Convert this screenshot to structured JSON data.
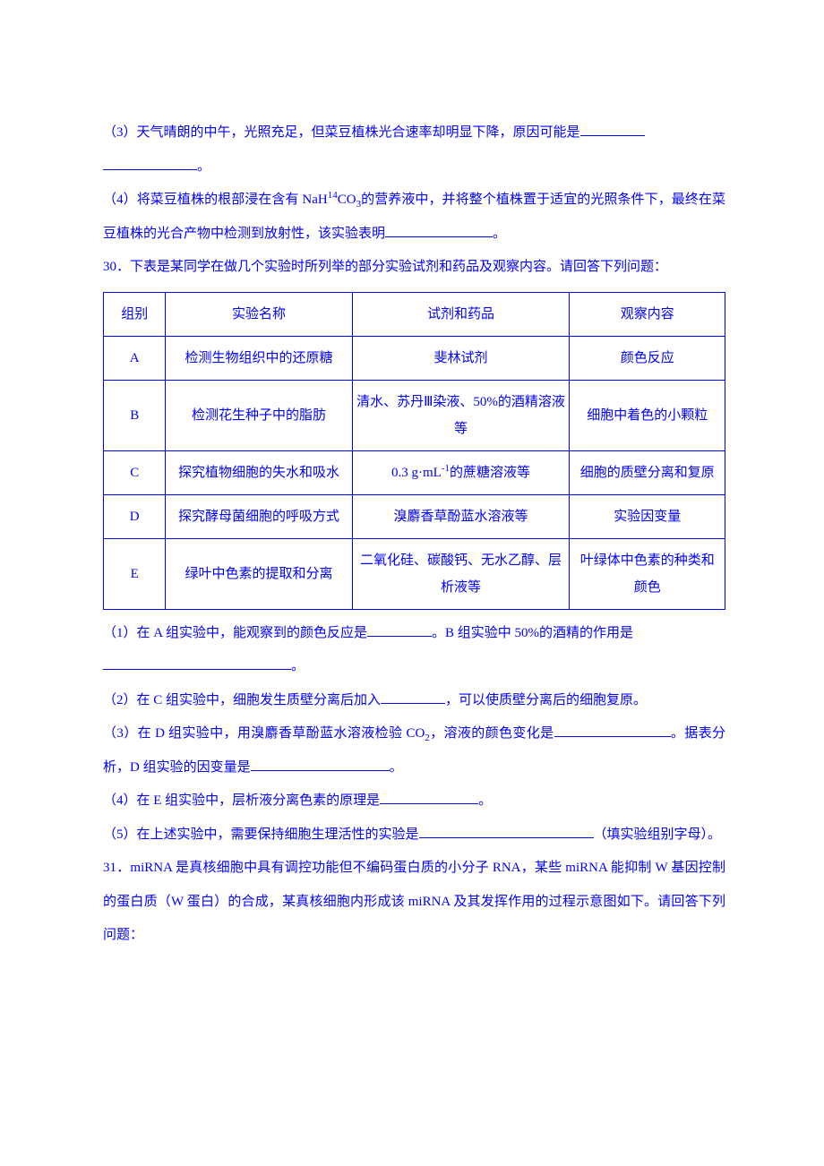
{
  "q3": {
    "prefix": "（3）天气晴朗的中午，光照充足，但菜豆植株光合速率却明显下降，原因可能是",
    "blank1_w": 72,
    "blank2_w": 105,
    "tail": "。"
  },
  "q4": {
    "prefix": "（4）将菜豆植株的根部浸在含有 NaH",
    "sup1": "14",
    "mid1": "CO",
    "sub1": "3",
    "mid2": "的营养液中，并将整个植株置于适宜的光照条件下，最终在菜豆植株的光合产物中检测到放射性，该实验表明",
    "blank_w": 120,
    "tail": "。"
  },
  "q30_intro": "30．下表是某同学在做几个实验时所列举的部分实验试剂和药品及观察内容。请回答下列问题：",
  "table": {
    "header": [
      "组别",
      "实验名称",
      "试剂和药品",
      "观察内容"
    ],
    "rows": [
      {
        "a": "A",
        "b": "检测生物组织中的还原糖",
        "c": "斐林试剂",
        "d": "颜色反应"
      },
      {
        "a": "B",
        "b": "检测花生种子中的脂肪",
        "c": "清水、苏丹Ⅲ染液、50%的酒精溶液等",
        "d": "细胞中着色的小颗粒"
      },
      {
        "a": "C",
        "b": "探究植物细胞的失水和吸水",
        "c_pre": "0.3 g·mL",
        "c_sup": "-1",
        "c_post": "的蔗糖溶液等",
        "d": "细胞的质壁分离和复原"
      },
      {
        "a": "D",
        "b": "探究酵母菌细胞的呼吸方式",
        "c": "溴麝香草酚蓝水溶液等",
        "d": "实验因变量"
      },
      {
        "a": "E",
        "b": "绿叶中色素的提取和分离",
        "c": "二氧化硅、碳酸钙、无水乙醇、层析液等",
        "d": "叶绿体中色素的种类和颜色"
      }
    ]
  },
  "sub1": {
    "t1": "（1）在 A 组实验中，能观察到的颜色反应是",
    "b1_w": 72,
    "t2": "。B 组实验中 50%的酒精的作用是",
    "b2_w": 210,
    "tail": "。"
  },
  "sub2": {
    "t1": "（2）在 C 组实验中，细胞发生质壁分离后加入",
    "b1_w": 72,
    "t2": "，可以使质壁分离后的细胞复原。"
  },
  "sub3": {
    "t1": "（3）在 D 组实验中，用溴麝香草酚蓝水溶液检验 CO",
    "sub": "2",
    "t2": "，溶液的颜色变化是",
    "b1_w": 130,
    "t3": "。据表分析，D 组实验的因变量是",
    "b2_w": 155,
    "tail": "。"
  },
  "sub4": {
    "t1": "（4）在 E 组实验中，层析液分离色素的原理是",
    "b1_w": 110,
    "tail": "。"
  },
  "sub5": {
    "t1": "（5）在上述实验中，需要保持细胞生理活性的实验是",
    "b1_w": 195,
    "t2": "（填实验组别字母）。"
  },
  "q31": "31．miRNA 是真核细胞中具有调控功能但不编码蛋白质的小分子 RNA，某些 miRNA 能抑制 W 基因控制的蛋白质（W 蛋白）的合成，某真核细胞内形成该 miRNA 及其发挥作用的过程示意图如下。请回答下列问题："
}
